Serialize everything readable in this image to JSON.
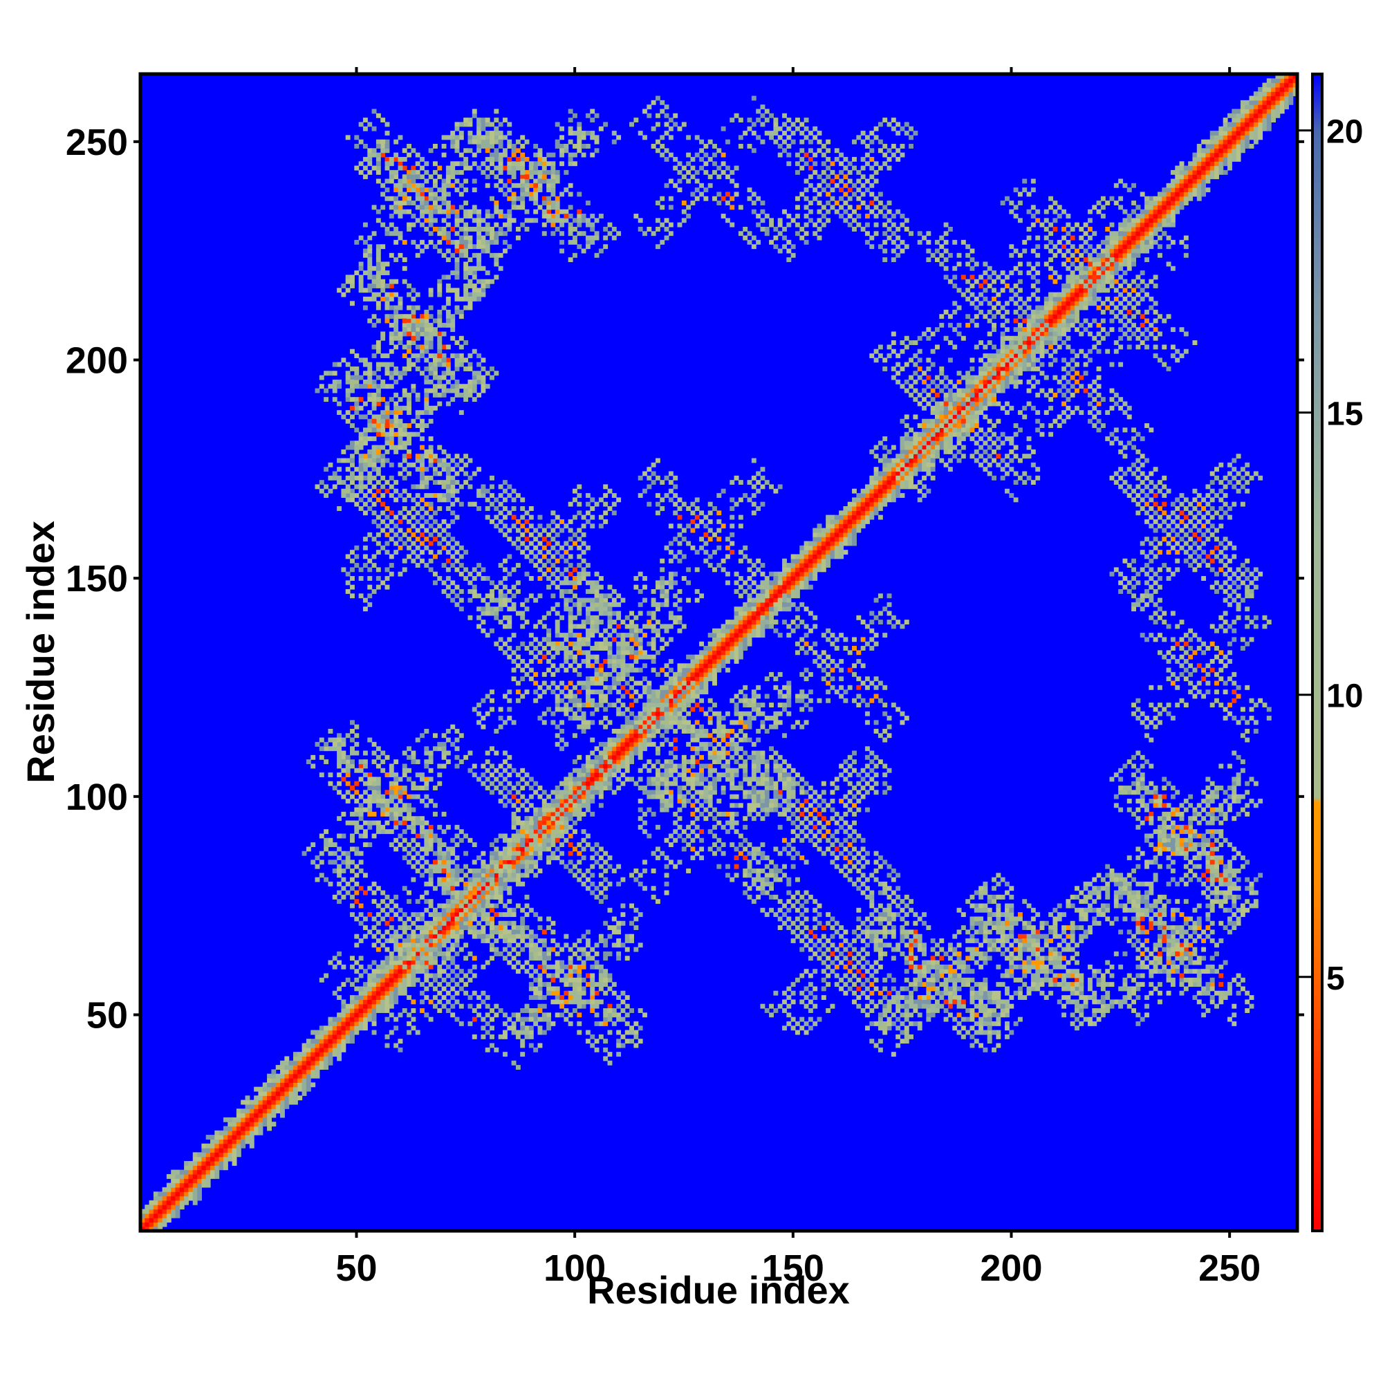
{
  "chart_data": {
    "type": "heatmap",
    "title": "",
    "xlabel": "Residue index",
    "ylabel": "Residue index",
    "xlim": [
      1,
      265
    ],
    "ylim": [
      1,
      265
    ],
    "x_ticks": [
      50,
      100,
      150,
      200,
      250
    ],
    "y_ticks": [
      50,
      100,
      150,
      200,
      250
    ],
    "colorbar": {
      "ticks": [
        5,
        10,
        15,
        20
      ],
      "range": [
        0.5,
        21
      ],
      "palette": [
        "#ff0000",
        "#ff4400",
        "#ff9900",
        "#a8bb8a",
        "#9fb89a",
        "#7c96a8",
        "#4a6ab0",
        "#0000ff"
      ],
      "contact_cutoff": 8
    },
    "colors": {
      "background": "#0000ff",
      "diagonal": "#ff0000",
      "contact": "#ff8c00",
      "near": "#a8bb8a"
    },
    "matrix_size": 265,
    "structures": {
      "diagonal_band": {
        "start": 1,
        "end": 265
      },
      "helix_crossings": [
        {
          "x": 65,
          "y": 240
        },
        {
          "x": 88,
          "y": 240
        },
        {
          "x": 65,
          "y": 208
        },
        {
          "x": 60,
          "y": 185
        },
        {
          "x": 62,
          "y": 163
        },
        {
          "x": 93,
          "y": 157
        },
        {
          "x": 60,
          "y": 100
        },
        {
          "x": 58,
          "y": 70
        },
        {
          "x": 75,
          "y": 78
        },
        {
          "x": 95,
          "y": 93
        },
        {
          "x": 98,
          "y": 55
        },
        {
          "x": 130,
          "y": 93
        },
        {
          "x": 155,
          "y": 95
        },
        {
          "x": 162,
          "y": 240
        },
        {
          "x": 163,
          "y": 163
        },
        {
          "x": 160,
          "y": 130
        },
        {
          "x": 175,
          "y": 175
        },
        {
          "x": 185,
          "y": 190
        },
        {
          "x": 160,
          "y": 63
        },
        {
          "x": 183,
          "y": 57
        },
        {
          "x": 205,
          "y": 63
        },
        {
          "x": 233,
          "y": 67
        },
        {
          "x": 240,
          "y": 93
        },
        {
          "x": 240,
          "y": 240
        },
        {
          "x": 215,
          "y": 225
        },
        {
          "x": 215,
          "y": 195
        },
        {
          "x": 240,
          "y": 160
        },
        {
          "x": 243,
          "y": 130
        },
        {
          "x": 128,
          "y": 108
        },
        {
          "x": 112,
          "y": 135
        }
      ]
    }
  }
}
